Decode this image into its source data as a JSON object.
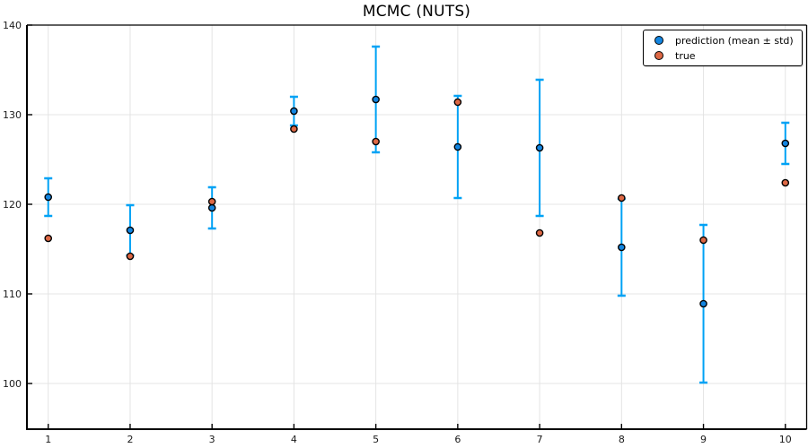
{
  "title": "MCMC (NUTS)",
  "legend": {
    "items": [
      {
        "label": "prediction (mean ± std)",
        "marker_color": "#1385e0"
      },
      {
        "label": "true",
        "marker_color": "#dd6845"
      }
    ]
  },
  "colors": {
    "errorbar": "#00a2f5",
    "prediction_marker": "#1385e0",
    "true_marker": "#dd6845",
    "marker_edge": "#000000",
    "grid": "#e4e4e4",
    "frame": "#000000",
    "tick_label": "#1a1a1a",
    "background": "#ffffff"
  },
  "chart_data": {
    "type": "scatter",
    "title": "MCMC (NUTS)",
    "xlabel": "",
    "ylabel": "",
    "x": [
      1,
      2,
      3,
      4,
      5,
      6,
      7,
      8,
      9,
      10
    ],
    "series": [
      {
        "name": "prediction (mean ± std)",
        "type": "scatter_errorbar",
        "mean": [
          120.8,
          117.1,
          119.6,
          130.4,
          131.7,
          126.4,
          126.3,
          115.2,
          108.9,
          126.8
        ],
        "std": [
          2.1,
          2.8,
          2.3,
          1.6,
          5.9,
          5.7,
          7.6,
          5.4,
          8.8,
          2.3
        ]
      },
      {
        "name": "true",
        "type": "scatter",
        "values": [
          116.2,
          114.2,
          120.3,
          128.4,
          127.0,
          131.4,
          116.8,
          120.7,
          116.0,
          122.4
        ]
      }
    ],
    "xticks": [
      1,
      2,
      3,
      4,
      5,
      6,
      7,
      8,
      9,
      10
    ],
    "yticks": [
      100,
      110,
      120,
      130,
      140
    ],
    "xlim": [
      0.74,
      10.26
    ],
    "ylim": [
      94.9,
      140
    ],
    "grid": true,
    "legend_position": "top-right"
  }
}
